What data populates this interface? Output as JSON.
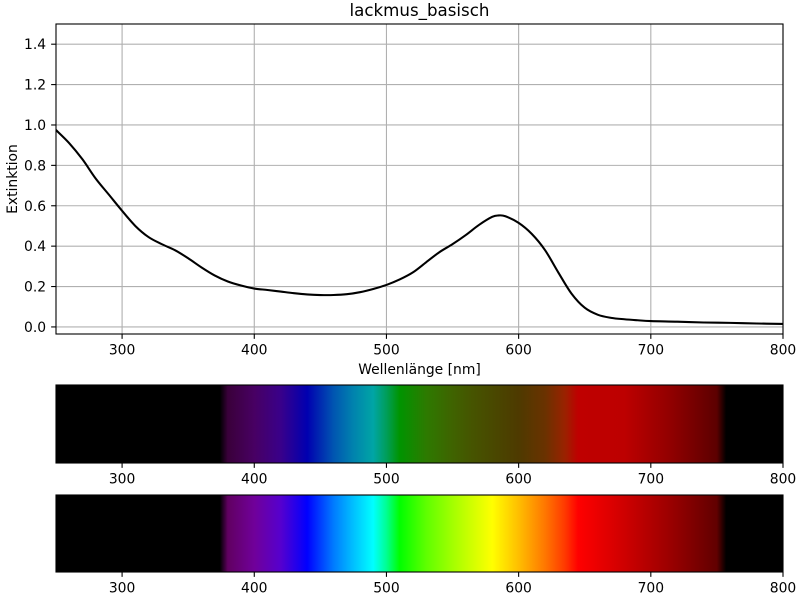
{
  "chart_data": [
    {
      "type": "line",
      "title": "lackmus_basisch",
      "xlabel": "Wellenlänge [nm]",
      "ylabel": "Extinktion",
      "xlim": [
        250,
        800
      ],
      "ylim": [
        -0.035,
        1.5
      ],
      "xticks": [
        "300",
        "400",
        "500",
        "600",
        "700",
        "800"
      ],
      "yticks": [
        "0.0",
        "0.2",
        "0.4",
        "0.6",
        "0.8",
        "1.0",
        "1.2",
        "1.4"
      ],
      "grid": true,
      "series": [
        {
          "color": "#000000",
          "x": [
            250,
            260,
            270,
            280,
            290,
            300,
            310,
            320,
            330,
            340,
            350,
            360,
            370,
            380,
            390,
            400,
            410,
            420,
            430,
            440,
            450,
            460,
            470,
            480,
            490,
            500,
            510,
            520,
            530,
            540,
            550,
            560,
            570,
            580,
            585,
            590,
            600,
            610,
            620,
            630,
            640,
            650,
            660,
            670,
            680,
            690,
            700,
            720,
            740,
            760,
            780,
            800
          ],
          "y": [
            0.975,
            0.91,
            0.83,
            0.735,
            0.655,
            0.575,
            0.5,
            0.445,
            0.41,
            0.38,
            0.34,
            0.295,
            0.255,
            0.225,
            0.205,
            0.19,
            0.183,
            0.175,
            0.167,
            0.161,
            0.158,
            0.158,
            0.162,
            0.172,
            0.188,
            0.208,
            0.235,
            0.27,
            0.32,
            0.37,
            0.41,
            0.455,
            0.505,
            0.545,
            0.552,
            0.548,
            0.515,
            0.46,
            0.38,
            0.27,
            0.165,
            0.095,
            0.06,
            0.045,
            0.038,
            0.033,
            0.029,
            0.026,
            0.022,
            0.02,
            0.017,
            0.015
          ]
        }
      ]
    },
    {
      "type": "heatmap",
      "xlim": [
        250,
        800
      ],
      "xticks": [
        "300",
        "400",
        "500",
        "600",
        "700",
        "800"
      ],
      "color_stops": [
        {
          "x": 250,
          "color": "#000000"
        },
        {
          "x": 374,
          "color": "#000000"
        },
        {
          "x": 380,
          "color": "#3a003a"
        },
        {
          "x": 400,
          "color": "#480063"
        },
        {
          "x": 420,
          "color": "#39008a"
        },
        {
          "x": 440,
          "color": "#0000b0"
        },
        {
          "x": 460,
          "color": "#0055b1"
        },
        {
          "x": 475,
          "color": "#0083ae"
        },
        {
          "x": 490,
          "color": "#00a5a5"
        },
        {
          "x": 500,
          "color": "#009e5a"
        },
        {
          "x": 510,
          "color": "#009400"
        },
        {
          "x": 530,
          "color": "#2d7a00"
        },
        {
          "x": 550,
          "color": "#3f6300"
        },
        {
          "x": 565,
          "color": "#465400"
        },
        {
          "x": 580,
          "color": "#494900"
        },
        {
          "x": 600,
          "color": "#4e3a00"
        },
        {
          "x": 620,
          "color": "#6a3200"
        },
        {
          "x": 635,
          "color": "#9a2200"
        },
        {
          "x": 645,
          "color": "#bf0000"
        },
        {
          "x": 680,
          "color": "#bd0000"
        },
        {
          "x": 715,
          "color": "#910000"
        },
        {
          "x": 750,
          "color": "#5c0000"
        },
        {
          "x": 757,
          "color": "#000000"
        },
        {
          "x": 800,
          "color": "#000000"
        }
      ]
    },
    {
      "type": "heatmap",
      "xlim": [
        250,
        800
      ],
      "xticks": [
        "300",
        "400",
        "500",
        "600",
        "700",
        "800"
      ],
      "color_stops": [
        {
          "x": 250,
          "color": "#000000"
        },
        {
          "x": 374,
          "color": "#000000"
        },
        {
          "x": 380,
          "color": "#610061"
        },
        {
          "x": 400,
          "color": "#70009a"
        },
        {
          "x": 420,
          "color": "#5600ce"
        },
        {
          "x": 440,
          "color": "#0000ff"
        },
        {
          "x": 460,
          "color": "#007bff"
        },
        {
          "x": 475,
          "color": "#00c0ff"
        },
        {
          "x": 490,
          "color": "#00ffff"
        },
        {
          "x": 500,
          "color": "#00ff92"
        },
        {
          "x": 510,
          "color": "#00ff00"
        },
        {
          "x": 530,
          "color": "#5eff00"
        },
        {
          "x": 550,
          "color": "#a3ff00"
        },
        {
          "x": 565,
          "color": "#d2ff00"
        },
        {
          "x": 580,
          "color": "#ffff00"
        },
        {
          "x": 600,
          "color": "#ffbe00"
        },
        {
          "x": 620,
          "color": "#ff7700"
        },
        {
          "x": 635,
          "color": "#ff3900"
        },
        {
          "x": 645,
          "color": "#ff0000"
        },
        {
          "x": 680,
          "color": "#ce0000"
        },
        {
          "x": 715,
          "color": "#9a0000"
        },
        {
          "x": 750,
          "color": "#610000"
        },
        {
          "x": 757,
          "color": "#000000"
        },
        {
          "x": 800,
          "color": "#000000"
        }
      ]
    }
  ]
}
